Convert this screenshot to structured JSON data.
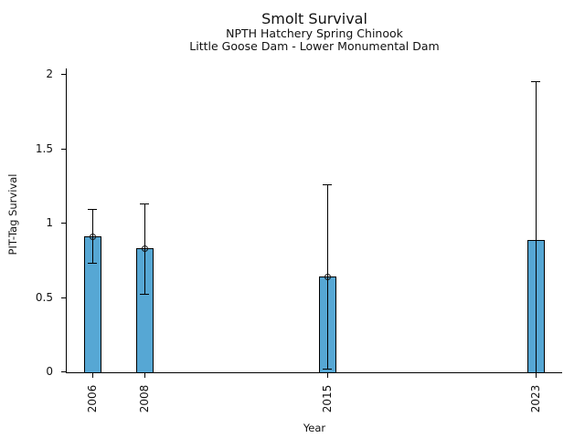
{
  "chart_data": {
    "type": "bar",
    "title": "Smolt Survival",
    "subtitle1": "NPTH Hatchery Spring Chinook",
    "subtitle2": "Little Goose Dam - Lower Monumental Dam",
    "xlabel": "Year",
    "ylabel": "PIT-Tag Survival",
    "categories": [
      2006,
      2008,
      2015,
      2023
    ],
    "values": [
      0.91,
      0.83,
      0.64,
      0.89
    ],
    "error_low": [
      0.73,
      0.52,
      0.02,
      0.0
    ],
    "error_high": [
      1.09,
      1.13,
      1.26,
      1.95
    ],
    "point_markers": [
      true,
      true,
      true,
      false
    ],
    "xlim": [
      2005,
      2024
    ],
    "ylim": [
      0,
      2.04
    ],
    "yticks": [
      0,
      0.5,
      1,
      1.5,
      2
    ],
    "ytick_labels": [
      "0",
      "0.5",
      "1",
      "1.5",
      "2"
    ],
    "xtick_labels": [
      "2006",
      "2008",
      "2015",
      "2023"
    ],
    "bar_color": "#56a7d4",
    "bar_edge_color": "#000000",
    "error_color": "#000000",
    "bar_width_years": 0.67,
    "grid": false,
    "legend": null,
    "background": "#ffffff"
  }
}
